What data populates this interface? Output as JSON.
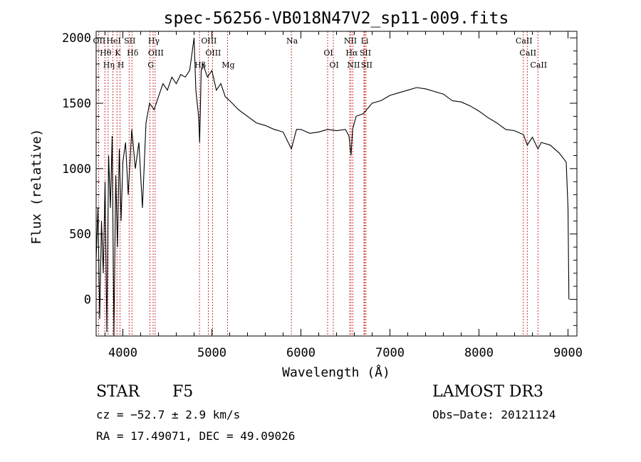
{
  "chart_data": {
    "type": "line",
    "title": "spec-56256-VB018N47V2_sp11-009.fits",
    "xlabel": "Wavelength (Å)",
    "ylabel": "Flux (relative)",
    "xlim": [
      3700,
      9100
    ],
    "ylim": [
      -280,
      2050
    ],
    "xticks": [
      4000,
      5000,
      6000,
      7000,
      8000,
      9000
    ],
    "yticks": [
      0,
      500,
      1000,
      1500,
      2000
    ],
    "series": [
      {
        "name": "flux",
        "x": [
          3700,
          3720,
          3740,
          3760,
          3780,
          3800,
          3820,
          3840,
          3860,
          3880,
          3900,
          3920,
          3940,
          3960,
          3980,
          4000,
          4030,
          4060,
          4100,
          4140,
          4180,
          4220,
          4260,
          4300,
          4350,
          4400,
          4450,
          4500,
          4550,
          4600,
          4650,
          4700,
          4750,
          4800,
          4820,
          4850,
          4862,
          4880,
          4900,
          4950,
          5000,
          5050,
          5100,
          5150,
          5200,
          5300,
          5400,
          5500,
          5600,
          5700,
          5800,
          5893,
          5950,
          6000,
          6100,
          6200,
          6300,
          6400,
          6500,
          6540,
          6563,
          6580,
          6620,
          6700,
          6800,
          6900,
          7000,
          7100,
          7200,
          7300,
          7400,
          7500,
          7600,
          7700,
          7800,
          7900,
          8000,
          8100,
          8200,
          8300,
          8400,
          8500,
          8542,
          8600,
          8662,
          8700,
          8800,
          8900,
          8980,
          9000,
          9010
        ],
        "values": [
          300,
          700,
          -150,
          600,
          200,
          900,
          -250,
          1100,
          700,
          1250,
          -280,
          950,
          400,
          1150,
          600,
          1050,
          1200,
          800,
          1300,
          1000,
          1200,
          700,
          1350,
          1500,
          1450,
          1550,
          1650,
          1600,
          1700,
          1650,
          1720,
          1700,
          1750,
          2000,
          1600,
          1400,
          1200,
          1750,
          1800,
          1700,
          1750,
          1600,
          1650,
          1550,
          1520,
          1450,
          1400,
          1350,
          1330,
          1300,
          1280,
          1150,
          1300,
          1300,
          1270,
          1280,
          1300,
          1290,
          1300,
          1250,
          1100,
          1300,
          1400,
          1420,
          1500,
          1520,
          1560,
          1580,
          1600,
          1620,
          1610,
          1590,
          1570,
          1520,
          1510,
          1480,
          1440,
          1390,
          1350,
          1300,
          1290,
          1260,
          1180,
          1240,
          1150,
          1200,
          1180,
          1120,
          1050,
          700,
          0
        ]
      }
    ],
    "line_markers": [
      {
        "name": "OII",
        "x": 3727
      },
      {
        "name": "Hθ",
        "x": 3798
      },
      {
        "name": "Hη",
        "x": 3835
      },
      {
        "name": "HeI",
        "x": 3889
      },
      {
        "name": "K",
        "x": 3934
      },
      {
        "name": "H",
        "x": 3968
      },
      {
        "name": "SII",
        "x": 4070
      },
      {
        "name": "Hδ",
        "x": 4102
      },
      {
        "name": "G",
        "x": 4305
      },
      {
        "name": "Hγ",
        "x": 4340
      },
      {
        "name": "OIII",
        "x": 4363
      },
      {
        "name": "Hβ",
        "x": 4861
      },
      {
        "name": "OIII",
        "x": 4959
      },
      {
        "name": "OIII",
        "x": 5007
      },
      {
        "name": "Mg",
        "x": 5175
      },
      {
        "name": "Na",
        "x": 5893
      },
      {
        "name": "OI",
        "x": 6300
      },
      {
        "name": "OI",
        "x": 6364
      },
      {
        "name": "NII",
        "x": 6548
      },
      {
        "name": "Hα",
        "x": 6563
      },
      {
        "name": "NII",
        "x": 6583
      },
      {
        "name": "Li",
        "x": 6708
      },
      {
        "name": "SII",
        "x": 6716
      },
      {
        "name": "SII",
        "x": 6731
      },
      {
        "name": "CaII",
        "x": 8498
      },
      {
        "name": "CaII",
        "x": 8542
      },
      {
        "name": "CaII",
        "x": 8662
      }
    ]
  },
  "info": {
    "object_class": "STAR",
    "subclass": "F5",
    "survey": "LAMOST DR3",
    "cz": "cz = −52.7 ± 2.9 km/s",
    "obs_date": "Obs−Date: 20121124",
    "coords": "RA =  17.49071, DEC =  49.09026"
  },
  "colors": {
    "line": "#000000",
    "marker": "#c00000",
    "axes": "#000000"
  }
}
